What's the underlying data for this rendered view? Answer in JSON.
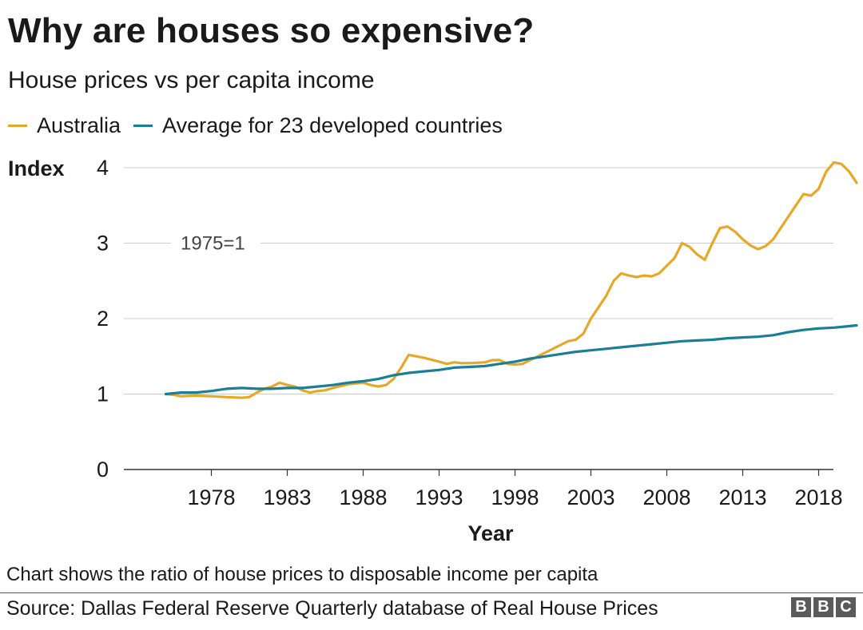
{
  "title": "Why are houses so expensive?",
  "subtitle": "House prices vs per capita income",
  "legend": [
    {
      "name": "Australia",
      "color": "#e4a92a"
    },
    {
      "name": "Average for 23 developed countries",
      "color": "#1a7f96"
    }
  ],
  "note": "Chart shows the ratio of house prices to disposable income per capita",
  "source": "Source: Dallas Federal Reserve Quarterly database of Real House Prices",
  "logo": [
    "B",
    "B",
    "C"
  ],
  "chart_data": {
    "type": "line",
    "ylabel": "Index",
    "xlabel": "Year",
    "annotation": "1975=1",
    "ylim": [
      0,
      4.2
    ],
    "xlim": [
      1973,
      2022
    ],
    "yticks": [
      0,
      1,
      2,
      3,
      4
    ],
    "xticks": [
      1978,
      1983,
      1988,
      1993,
      1998,
      2003,
      2008,
      2013,
      2018
    ],
    "grid": "horizontal",
    "legend_position": "top",
    "series": [
      {
        "name": "Australia",
        "color": "#e4a92a",
        "points": [
          [
            1975,
            1.0
          ],
          [
            1975.5,
            0.99
          ],
          [
            1976,
            0.97
          ],
          [
            1977,
            0.98
          ],
          [
            1978,
            0.97
          ],
          [
            1979,
            0.96
          ],
          [
            1980,
            0.95
          ],
          [
            1980.5,
            0.96
          ],
          [
            1981,
            1.02
          ],
          [
            1981.5,
            1.07
          ],
          [
            1982,
            1.1
          ],
          [
            1982.5,
            1.15
          ],
          [
            1983,
            1.12
          ],
          [
            1983.5,
            1.1
          ],
          [
            1984,
            1.05
          ],
          [
            1984.5,
            1.02
          ],
          [
            1985,
            1.04
          ],
          [
            1985.5,
            1.05
          ],
          [
            1986,
            1.08
          ],
          [
            1987,
            1.13
          ],
          [
            1987.5,
            1.14
          ],
          [
            1988,
            1.15
          ],
          [
            1988.5,
            1.12
          ],
          [
            1989,
            1.1
          ],
          [
            1989.5,
            1.12
          ],
          [
            1990,
            1.2
          ],
          [
            1990.5,
            1.35
          ],
          [
            1991,
            1.52
          ],
          [
            1991.5,
            1.5
          ],
          [
            1992,
            1.48
          ],
          [
            1993,
            1.43
          ],
          [
            1993.5,
            1.4
          ],
          [
            1994,
            1.42
          ],
          [
            1994.5,
            1.41
          ],
          [
            1995,
            1.41
          ],
          [
            1996,
            1.42
          ],
          [
            1996.5,
            1.45
          ],
          [
            1997,
            1.45
          ],
          [
            1997.5,
            1.4
          ],
          [
            1998,
            1.39
          ],
          [
            1998.5,
            1.4
          ],
          [
            1999,
            1.45
          ],
          [
            1999.5,
            1.5
          ],
          [
            2000,
            1.55
          ],
          [
            2001,
            1.65
          ],
          [
            2001.5,
            1.7
          ],
          [
            2002,
            1.72
          ],
          [
            2002.5,
            1.8
          ],
          [
            2003,
            2.0
          ],
          [
            2003.5,
            2.15
          ],
          [
            2004,
            2.3
          ],
          [
            2004.5,
            2.5
          ],
          [
            2005,
            2.6
          ],
          [
            2005.5,
            2.57
          ],
          [
            2006,
            2.55
          ],
          [
            2006.5,
            2.57
          ],
          [
            2007,
            2.56
          ],
          [
            2007.5,
            2.6
          ],
          [
            2008,
            2.7
          ],
          [
            2008.5,
            2.8
          ],
          [
            2009,
            3.0
          ],
          [
            2009.5,
            2.95
          ],
          [
            2010,
            2.85
          ],
          [
            2010.5,
            2.78
          ],
          [
            2011,
            3.0
          ],
          [
            2011.5,
            3.2
          ],
          [
            2012,
            3.22
          ],
          [
            2012.5,
            3.15
          ],
          [
            2013,
            3.05
          ],
          [
            2013.5,
            2.97
          ],
          [
            2014,
            2.92
          ],
          [
            2014.5,
            2.96
          ],
          [
            2015,
            3.05
          ],
          [
            2015.5,
            3.2
          ],
          [
            2016,
            3.35
          ],
          [
            2016.5,
            3.5
          ],
          [
            2017,
            3.65
          ],
          [
            2017.5,
            3.63
          ],
          [
            2018,
            3.72
          ],
          [
            2018.5,
            3.95
          ],
          [
            2019,
            4.07
          ],
          [
            2019.5,
            4.05
          ],
          [
            2020,
            3.95
          ],
          [
            2020.5,
            3.8
          ]
        ]
      },
      {
        "name": "Average for 23 developed countries",
        "color": "#1a7f96",
        "points": [
          [
            1975,
            1.0
          ],
          [
            1976,
            1.02
          ],
          [
            1977,
            1.02
          ],
          [
            1978,
            1.04
          ],
          [
            1979,
            1.07
          ],
          [
            1980,
            1.08
          ],
          [
            1981,
            1.07
          ],
          [
            1982,
            1.07
          ],
          [
            1983,
            1.08
          ],
          [
            1984,
            1.08
          ],
          [
            1985,
            1.1
          ],
          [
            1986,
            1.12
          ],
          [
            1987,
            1.15
          ],
          [
            1988,
            1.17
          ],
          [
            1989,
            1.2
          ],
          [
            1990,
            1.25
          ],
          [
            1991,
            1.28
          ],
          [
            1992,
            1.3
          ],
          [
            1993,
            1.32
          ],
          [
            1994,
            1.35
          ],
          [
            1995,
            1.36
          ],
          [
            1996,
            1.37
          ],
          [
            1997,
            1.4
          ],
          [
            1998,
            1.43
          ],
          [
            1999,
            1.47
          ],
          [
            2000,
            1.5
          ],
          [
            2001,
            1.53
          ],
          [
            2002,
            1.56
          ],
          [
            2003,
            1.58
          ],
          [
            2004,
            1.6
          ],
          [
            2005,
            1.62
          ],
          [
            2006,
            1.64
          ],
          [
            2007,
            1.66
          ],
          [
            2008,
            1.68
          ],
          [
            2009,
            1.7
          ],
          [
            2010,
            1.71
          ],
          [
            2011,
            1.72
          ],
          [
            2012,
            1.74
          ],
          [
            2013,
            1.75
          ],
          [
            2014,
            1.76
          ],
          [
            2015,
            1.78
          ],
          [
            2016,
            1.82
          ],
          [
            2017,
            1.85
          ],
          [
            2018,
            1.87
          ],
          [
            2019,
            1.88
          ],
          [
            2020,
            1.9
          ],
          [
            2020.5,
            1.91
          ]
        ]
      }
    ]
  }
}
